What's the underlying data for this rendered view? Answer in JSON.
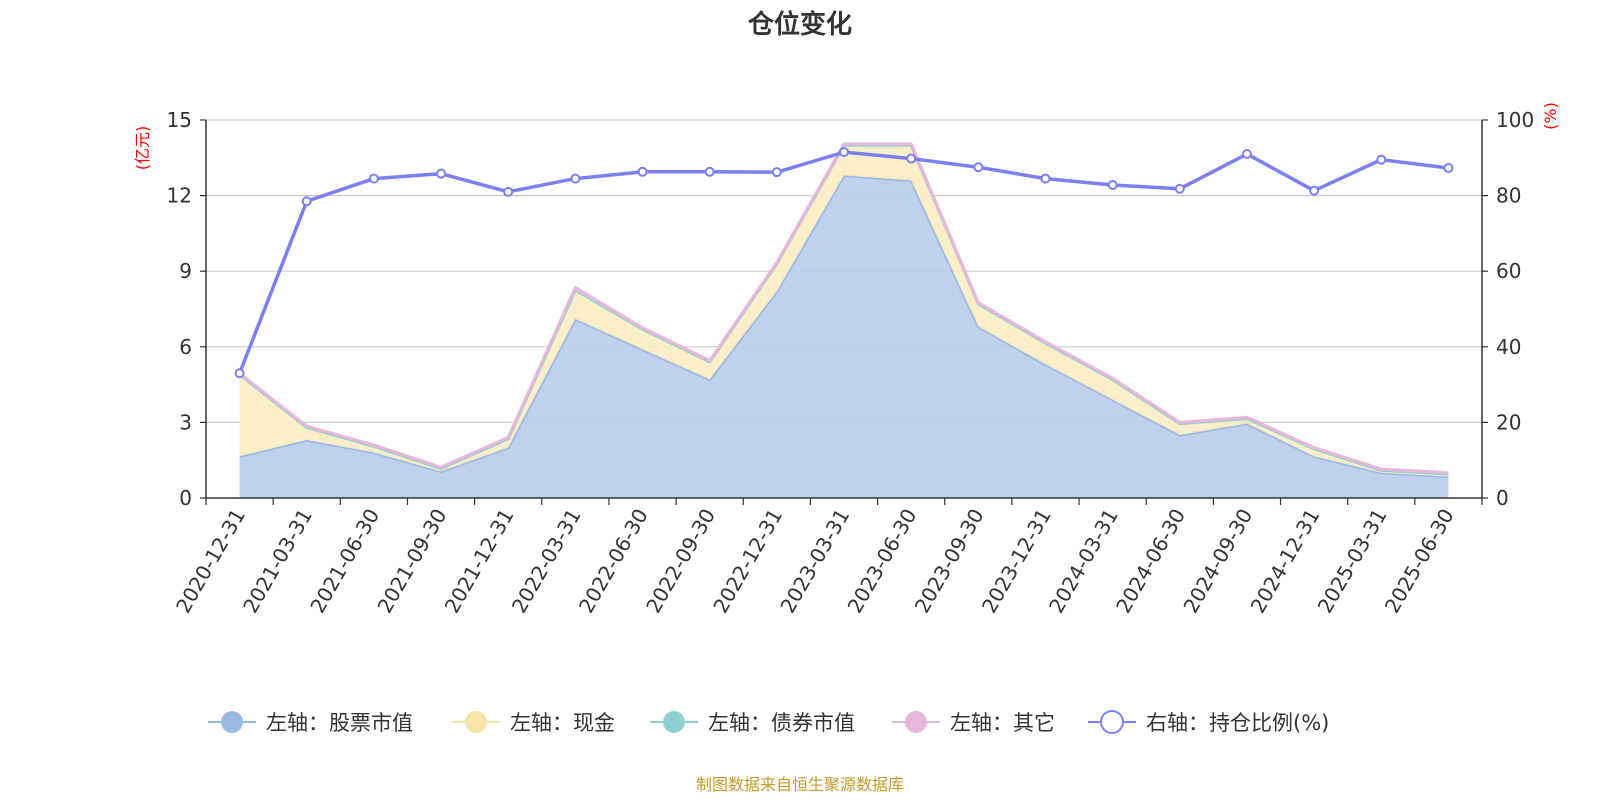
{
  "chart_data": {
    "type": "area",
    "title": "仓位变化",
    "source": "制图数据来自恒生聚源数据库",
    "left_axis": {
      "unit": "(亿元)",
      "ylim": [
        0,
        15
      ],
      "ticks": [
        "0",
        "3",
        "6",
        "9",
        "12",
        "15"
      ]
    },
    "right_axis": {
      "unit": "(%)",
      "ylim": [
        0,
        100
      ],
      "ticks": [
        "0",
        "20",
        "40",
        "60",
        "80",
        "100"
      ]
    },
    "categories": [
      "2020-12-31",
      "2021-03-31",
      "2021-06-30",
      "2021-09-30",
      "2021-12-31",
      "2022-03-31",
      "2022-06-30",
      "2022-09-30",
      "2022-12-31",
      "2023-03-31",
      "2023-06-30",
      "2023-09-30",
      "2023-12-31",
      "2024-03-31",
      "2024-06-30",
      "2024-09-30",
      "2024-12-31",
      "2025-03-31",
      "2025-06-30"
    ],
    "series": [
      {
        "name": "左轴：股票市值",
        "axis": "left",
        "stack": true,
        "color": "#9bb8e3",
        "fill": "#b7cbea",
        "values": [
          1.65,
          2.3,
          1.8,
          1.05,
          2.0,
          7.1,
          5.9,
          4.7,
          8.2,
          12.8,
          12.6,
          6.8,
          5.3,
          3.9,
          2.5,
          2.95,
          1.65,
          1.0,
          0.85
        ]
      },
      {
        "name": "左轴：现金",
        "axis": "left",
        "stack": true,
        "color": "#f5e4a6",
        "fill": "#f9edc2",
        "values": [
          3.25,
          0.5,
          0.25,
          0.12,
          0.35,
          1.15,
          0.8,
          0.7,
          1.1,
          1.2,
          1.4,
          0.9,
          0.85,
          0.8,
          0.45,
          0.2,
          0.3,
          0.1,
          0.1
        ]
      },
      {
        "name": "左轴：债券市值",
        "axis": "left",
        "stack": true,
        "color": "#8fd1d1",
        "fill": "#bfe6e6",
        "values": [
          0,
          0,
          0,
          0,
          0,
          0,
          0,
          0,
          0,
          0,
          0,
          0,
          0,
          0,
          0,
          0,
          0,
          0,
          0
        ]
      },
      {
        "name": "左轴：其它",
        "axis": "left",
        "stack": true,
        "color": "#e8b5db",
        "fill": "#f0cfe7",
        "values": [
          0.05,
          0.05,
          0.05,
          0.05,
          0.05,
          0.1,
          0.05,
          0.05,
          0.05,
          0.05,
          0.05,
          0.05,
          0.05,
          0.05,
          0.05,
          0.05,
          0.05,
          0.05,
          0.05
        ]
      },
      {
        "name": "右轴：持仓比例(%)",
        "axis": "right",
        "stack": false,
        "color": "#7b7ff0",
        "fill": "#ffffff",
        "values": [
          33,
          78.5,
          84.5,
          85.8,
          81,
          84.5,
          86.3,
          86.3,
          86.2,
          91.5,
          89.8,
          87.5,
          84.5,
          82.8,
          81.8,
          91,
          81.3,
          89.5,
          87.3
        ]
      }
    ]
  }
}
